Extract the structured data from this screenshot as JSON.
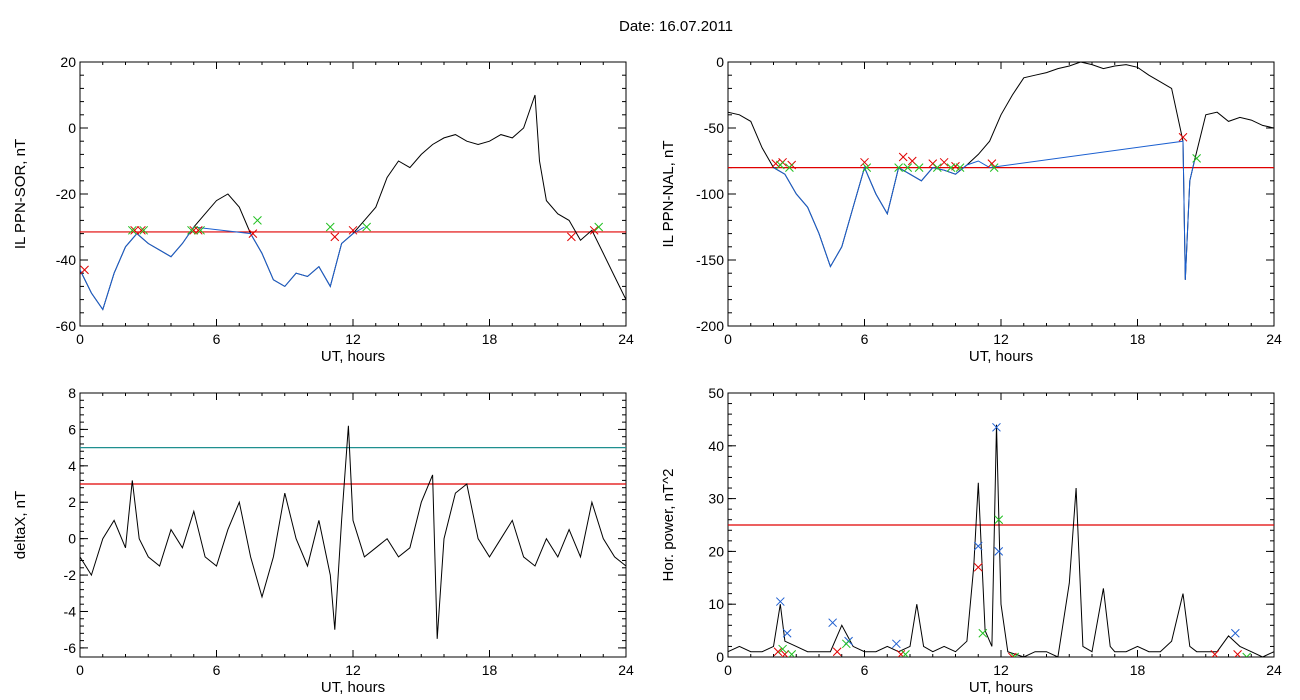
{
  "figure": {
    "title": "Date:  16.07.2011"
  },
  "chart_data": [
    {
      "id": "p1",
      "type": "line",
      "ylabel": "IL PPN-SOR, nT",
      "xlabel": "UT, hours",
      "xlim": [
        0,
        24
      ],
      "ylim": [
        -60,
        20
      ],
      "xticks": [
        "0",
        "6",
        "12",
        "18",
        "24"
      ],
      "yticks": [
        "-60",
        "-40",
        "-20",
        "0",
        "20"
      ],
      "threshold": {
        "value": -31.5,
        "color": "#e00000"
      },
      "series": [
        {
          "color": "#000000",
          "x": [
            0,
            0.5,
            1,
            1.5,
            2,
            2.5,
            3,
            3.5,
            4,
            4.5,
            5,
            5.5,
            6,
            6.5,
            7,
            7.5,
            8,
            8.5,
            9,
            9.5,
            10,
            10.5,
            11,
            11.5,
            12,
            12.5,
            13,
            13.5,
            14,
            14.5,
            15,
            15.5,
            16,
            16.5,
            17,
            17.5,
            18,
            18.5,
            19,
            19.5,
            20,
            20.2,
            20.5,
            21,
            21.5,
            22,
            22.5,
            23,
            23.5,
            24
          ],
          "y": [
            -43,
            -50,
            -55,
            -44,
            -36,
            -32,
            -35,
            -37,
            -39,
            -35,
            -30,
            -26,
            -22,
            -20,
            -24,
            -32,
            -38,
            -46,
            -48,
            -44,
            -45,
            -42,
            -48,
            -35,
            -32,
            -28,
            -24,
            -15,
            -10,
            -12,
            -8,
            -5,
            -3,
            -2,
            -4,
            -5,
            -4,
            -2,
            -3,
            0,
            10,
            -10,
            -22,
            -26,
            -28,
            -34,
            -31,
            -38,
            -45,
            -52
          ]
        },
        {
          "color": "#1a5fd0",
          "x": [
            0,
            0.5,
            1,
            1.5,
            2,
            2.5,
            3,
            3.5,
            4,
            4.5,
            5,
            7.5,
            8,
            8.5,
            9,
            9.5,
            10,
            10.5,
            11,
            11.5,
            12,
            12.5
          ],
          "y": [
            -43,
            -50,
            -55,
            -44,
            -36,
            -32,
            -35,
            -37,
            -39,
            -35,
            -30,
            -32,
            -38,
            -46,
            -48,
            -44,
            -45,
            -42,
            -48,
            -35,
            -32,
            -30
          ]
        }
      ],
      "markers": [
        {
          "color": "#e00000",
          "x": [
            0.2,
            2.4,
            2.7,
            5.0,
            5.2,
            7.6,
            11.2,
            12.0,
            21.6,
            22.6
          ],
          "y": [
            -43,
            -31,
            -31,
            -31,
            -31,
            -32,
            -33,
            -31,
            -33,
            -31
          ]
        },
        {
          "color": "#20c020",
          "x": [
            2.3,
            2.8,
            4.9,
            5.3,
            7.8,
            11.0,
            12.6,
            22.8
          ],
          "y": [
            -31,
            -31,
            -31,
            -31,
            -28,
            -30,
            -30,
            -30
          ]
        }
      ]
    },
    {
      "id": "p2",
      "type": "line",
      "ylabel": "IL PPN-NAL, nT",
      "xlabel": "UT, hours",
      "xlim": [
        0,
        24
      ],
      "ylim": [
        -200,
        0
      ],
      "xticks": [
        "0",
        "6",
        "12",
        "18",
        "24"
      ],
      "yticks": [
        "-200",
        "-150",
        "-100",
        "-50",
        "0"
      ],
      "threshold": {
        "value": -80,
        "color": "#e00000"
      },
      "series": [
        {
          "color": "#000000",
          "x": [
            0,
            0.5,
            1,
            1.5,
            2,
            2.5,
            3,
            3.5,
            4,
            4.5,
            5,
            5.5,
            6,
            6.5,
            7,
            7.5,
            8,
            8.5,
            9,
            9.5,
            10,
            10.5,
            11,
            11.5,
            12,
            12.5,
            13,
            13.5,
            14,
            14.5,
            15,
            15.5,
            16,
            16.5,
            17,
            17.5,
            18,
            18.5,
            19,
            19.5,
            20,
            20.1,
            20.3,
            20.5,
            21,
            21.5,
            22,
            22.5,
            23,
            23.5,
            24
          ],
          "y": [
            -38,
            -40,
            -45,
            -65,
            -80,
            -85,
            -100,
            -110,
            -130,
            -155,
            -140,
            -110,
            -80,
            -100,
            -115,
            -80,
            -85,
            -90,
            -80,
            -82,
            -85,
            -78,
            -70,
            -60,
            -40,
            -25,
            -12,
            -10,
            -8,
            -5,
            -3,
            0,
            -2,
            -5,
            -3,
            -2,
            -4,
            -10,
            -15,
            -20,
            -60,
            -165,
            -90,
            -75,
            -40,
            -38,
            -45,
            -42,
            -44,
            -48,
            -50
          ]
        },
        {
          "color": "#1a5fd0",
          "x": [
            2,
            2.5,
            3,
            3.5,
            4,
            4.5,
            5,
            5.5,
            6,
            6.5,
            7,
            7.5,
            8,
            8.5,
            9,
            9.5,
            10,
            10.5,
            11,
            11.5,
            20,
            20.1,
            20.3,
            20.5
          ],
          "y": [
            -80,
            -85,
            -100,
            -110,
            -130,
            -155,
            -140,
            -110,
            -80,
            -100,
            -115,
            -80,
            -85,
            -90,
            -80,
            -82,
            -85,
            -78,
            -75,
            -80,
            -60,
            -165,
            -90,
            -75
          ]
        }
      ],
      "markers": [
        {
          "color": "#e00000",
          "x": [
            2.1,
            2.4,
            2.8,
            6.0,
            7.7,
            8.1,
            9.0,
            9.5,
            10.0,
            11.6,
            20.0
          ],
          "y": [
            -77,
            -76,
            -78,
            -76,
            -72,
            -75,
            -77,
            -76,
            -79,
            -77,
            -57
          ]
        },
        {
          "color": "#20c020",
          "x": [
            2.3,
            2.7,
            6.1,
            7.5,
            7.9,
            8.4,
            9.2,
            9.8,
            10.2,
            11.7,
            20.6
          ],
          "y": [
            -78,
            -80,
            -80,
            -80,
            -80,
            -80,
            -80,
            -80,
            -80,
            -80,
            -73
          ]
        }
      ]
    },
    {
      "id": "p3",
      "type": "line",
      "ylabel": "deltaX, nT",
      "xlabel": "UT, hours",
      "xlim": [
        0,
        24
      ],
      "ylim": [
        -6.5,
        8
      ],
      "xticks": [
        "0",
        "6",
        "12",
        "18",
        "24"
      ],
      "yticks": [
        "-6",
        "-4",
        "-2",
        "0",
        "2",
        "4",
        "6",
        "8"
      ],
      "threshold": {
        "value": 3,
        "color": "#e00000"
      },
      "threshold2": {
        "value": 5,
        "color": "#1f8f8f"
      },
      "series": [
        {
          "color": "#000000",
          "x": [
            0,
            0.5,
            1,
            1.5,
            2,
            2.3,
            2.6,
            3,
            3.5,
            4,
            4.5,
            5,
            5.5,
            6,
            6.5,
            7,
            7.5,
            8,
            8.5,
            9,
            9.5,
            10,
            10.5,
            11,
            11.2,
            11.5,
            11.8,
            12,
            12.5,
            13,
            13.5,
            14,
            14.5,
            15,
            15.5,
            15.7,
            16,
            16.5,
            17,
            17.5,
            18,
            18.5,
            19,
            19.5,
            20,
            20.5,
            21,
            21.5,
            22,
            22.5,
            23,
            23.5,
            24
          ],
          "y": [
            -1,
            -2,
            0,
            1,
            -0.5,
            3.2,
            0,
            -1,
            -1.5,
            0.5,
            -0.5,
            1.5,
            -1,
            -1.5,
            0.5,
            2,
            -1,
            -3.2,
            -1,
            2.5,
            0,
            -1.5,
            1,
            -2,
            -5,
            1,
            6.2,
            1,
            -1,
            -0.5,
            0,
            -1,
            -0.5,
            2,
            3.5,
            -5.5,
            0,
            2.5,
            3,
            0,
            -1,
            0,
            1,
            -1,
            -1.5,
            0,
            -1,
            0.5,
            -1,
            2,
            0,
            -1,
            -1.5
          ]
        }
      ],
      "markers": []
    },
    {
      "id": "p4",
      "type": "line",
      "ylabel": "Hor. power, nT^2",
      "xlabel": "UT, hours",
      "xlim": [
        0,
        24
      ],
      "ylim": [
        0,
        50
      ],
      "xticks": [
        "0",
        "6",
        "12",
        "18",
        "24"
      ],
      "yticks": [
        "0",
        "10",
        "20",
        "30",
        "40",
        "50"
      ],
      "threshold": {
        "value": 25,
        "color": "#e00000"
      },
      "series": [
        {
          "color": "#000000",
          "x": [
            0,
            0.5,
            1,
            1.5,
            2,
            2.3,
            2.5,
            3,
            3.5,
            4,
            4.5,
            5,
            5.5,
            6,
            6.5,
            7,
            7.5,
            8,
            8.3,
            8.6,
            9,
            9.5,
            10,
            10.5,
            10.8,
            11,
            11.3,
            11.6,
            11.8,
            12,
            12.3,
            13,
            13.5,
            14,
            14.5,
            15,
            15.3,
            15.6,
            16,
            16.5,
            16.8,
            17,
            17.5,
            18,
            18.5,
            19,
            19.5,
            20,
            20.3,
            20.6,
            21,
            21.5,
            22,
            22.5,
            23,
            23.5,
            24
          ],
          "y": [
            1,
            2,
            1,
            1,
            2,
            10,
            3,
            2,
            1,
            1,
            1,
            6,
            2,
            1,
            1,
            2,
            1,
            2,
            10,
            2,
            1,
            2,
            1,
            3,
            17,
            33,
            5,
            2,
            44,
            10,
            1,
            0,
            1,
            1,
            0,
            14,
            32,
            2,
            1,
            13,
            2,
            1,
            1,
            2,
            1,
            1,
            3,
            12,
            2,
            1,
            1,
            1,
            4,
            2,
            1,
            0,
            1
          ]
        }
      ],
      "markers": [
        {
          "color": "#1f5fd0",
          "x": [
            2.3,
            2.6,
            4.6,
            5.3,
            7.4,
            11.0,
            11.8,
            11.9,
            22.3
          ],
          "y": [
            10.5,
            4.5,
            6.5,
            3,
            2.5,
            21,
            43.5,
            20,
            4.5
          ]
        },
        {
          "color": "#e00000",
          "x": [
            2.2,
            2.5,
            4.8,
            7.6,
            11.0,
            12.5,
            21.4,
            22.4
          ],
          "y": [
            1,
            0.5,
            1,
            0.5,
            17,
            0,
            0.5,
            0.5
          ]
        },
        {
          "color": "#20c020",
          "x": [
            2.4,
            2.8,
            5.2,
            7.8,
            11.2,
            11.9,
            12.6,
            22.8
          ],
          "y": [
            1.5,
            0.5,
            2.5,
            0.5,
            4.5,
            26,
            0,
            0
          ]
        }
      ]
    }
  ]
}
